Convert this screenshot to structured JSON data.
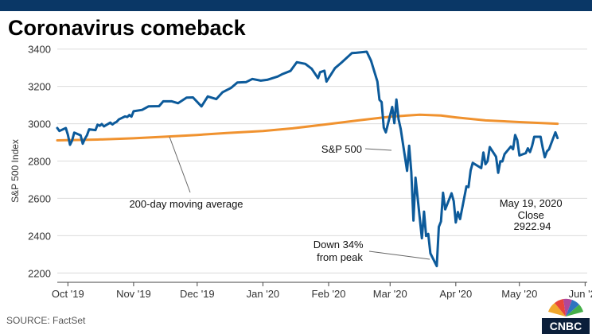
{
  "header": {
    "title": "Coronavirus comeback"
  },
  "footer": {
    "source": "SOURCE: FactSet",
    "brand": "CNBC"
  },
  "colors": {
    "topbar": "#0a3766",
    "sp500": "#0c5a9a",
    "ma200": "#f0922f",
    "grid": "#dcdcdc"
  },
  "chart_data": {
    "type": "line",
    "title": "Coronavirus comeback",
    "xlabel": "",
    "ylabel": "S&P 500 Index",
    "ylim": [
      2150,
      3450
    ],
    "yticks": [
      2200,
      2400,
      2600,
      2800,
      3000,
      3200,
      3400
    ],
    "x_ticks": [
      {
        "label": "Oct '19",
        "date": "2019-10-01"
      },
      {
        "label": "Nov '19",
        "date": "2019-11-01"
      },
      {
        "label": "Dec '19",
        "date": "2019-12-01"
      },
      {
        "label": "Jan '20",
        "date": "2020-01-01"
      },
      {
        "label": "Feb '20",
        "date": "2020-02-01"
      },
      {
        "label": "Mar '20",
        "date": "2020-03-01"
      },
      {
        "label": "Apr '20",
        "date": "2020-04-01"
      },
      {
        "label": "May '20",
        "date": "2020-05-01"
      },
      {
        "label": "Jun '20",
        "date": "2020-06-01"
      }
    ],
    "xlim": [
      "2019-09-26",
      "2020-06-02"
    ],
    "grid": "horizontal",
    "series": [
      {
        "name": "S&P 500",
        "color": "#0c5a9a",
        "points": [
          [
            "2019-09-26",
            2977
          ],
          [
            "2019-09-27",
            2961
          ],
          [
            "2019-09-30",
            2977
          ],
          [
            "2019-10-01",
            2941
          ],
          [
            "2019-10-02",
            2887
          ],
          [
            "2019-10-03",
            2910
          ],
          [
            "2019-10-04",
            2952
          ],
          [
            "2019-10-07",
            2938
          ],
          [
            "2019-10-08",
            2893
          ],
          [
            "2019-10-09",
            2919
          ],
          [
            "2019-10-10",
            2938
          ],
          [
            "2019-10-11",
            2970
          ],
          [
            "2019-10-14",
            2966
          ],
          [
            "2019-10-15",
            2995
          ],
          [
            "2019-10-16",
            2989
          ],
          [
            "2019-10-17",
            2998
          ],
          [
            "2019-10-18",
            2986
          ],
          [
            "2019-10-21",
            3006
          ],
          [
            "2019-10-22",
            2996
          ],
          [
            "2019-10-23",
            3004
          ],
          [
            "2019-10-24",
            3010
          ],
          [
            "2019-10-25",
            3023
          ],
          [
            "2019-10-28",
            3039
          ],
          [
            "2019-10-29",
            3036
          ],
          [
            "2019-10-30",
            3047
          ],
          [
            "2019-10-31",
            3038
          ],
          [
            "2019-11-01",
            3067
          ],
          [
            "2019-11-05",
            3074
          ],
          [
            "2019-11-08",
            3093
          ],
          [
            "2019-11-13",
            3094
          ],
          [
            "2019-11-15",
            3120
          ],
          [
            "2019-11-19",
            3120
          ],
          [
            "2019-11-22",
            3110
          ],
          [
            "2019-11-26",
            3140
          ],
          [
            "2019-11-29",
            3141
          ],
          [
            "2019-12-03",
            3093
          ],
          [
            "2019-12-06",
            3146
          ],
          [
            "2019-12-10",
            3132
          ],
          [
            "2019-12-13",
            3169
          ],
          [
            "2019-12-17",
            3192
          ],
          [
            "2019-12-20",
            3221
          ],
          [
            "2019-12-24",
            3223
          ],
          [
            "2019-12-27",
            3240
          ],
          [
            "2019-12-31",
            3231
          ],
          [
            "2020-01-03",
            3235
          ],
          [
            "2020-01-08",
            3253
          ],
          [
            "2020-01-10",
            3265
          ],
          [
            "2020-01-14",
            3283
          ],
          [
            "2020-01-17",
            3330
          ],
          [
            "2020-01-21",
            3321
          ],
          [
            "2020-01-24",
            3295
          ],
          [
            "2020-01-27",
            3244
          ],
          [
            "2020-01-28",
            3276
          ],
          [
            "2020-01-30",
            3284
          ],
          [
            "2020-01-31",
            3226
          ],
          [
            "2020-02-04",
            3298
          ],
          [
            "2020-02-07",
            3327
          ],
          [
            "2020-02-12",
            3379
          ],
          [
            "2020-02-14",
            3380
          ],
          [
            "2020-02-19",
            3386
          ],
          [
            "2020-02-21",
            3338
          ],
          [
            "2020-02-24",
            3226
          ],
          [
            "2020-02-25",
            3128
          ],
          [
            "2020-02-26",
            3116
          ],
          [
            "2020-02-27",
            2979
          ],
          [
            "2020-02-28",
            2954
          ],
          [
            "2020-03-02",
            3090
          ],
          [
            "2020-03-03",
            3003
          ],
          [
            "2020-03-04",
            3130
          ],
          [
            "2020-03-05",
            3024
          ],
          [
            "2020-03-06",
            2972
          ],
          [
            "2020-03-09",
            2747
          ],
          [
            "2020-03-10",
            2882
          ],
          [
            "2020-03-11",
            2741
          ],
          [
            "2020-03-12",
            2481
          ],
          [
            "2020-03-13",
            2711
          ],
          [
            "2020-03-16",
            2386
          ],
          [
            "2020-03-17",
            2529
          ],
          [
            "2020-03-18",
            2398
          ],
          [
            "2020-03-19",
            2409
          ],
          [
            "2020-03-20",
            2305
          ],
          [
            "2020-03-23",
            2237
          ],
          [
            "2020-03-24",
            2447
          ],
          [
            "2020-03-25",
            2476
          ],
          [
            "2020-03-26",
            2630
          ],
          [
            "2020-03-27",
            2541
          ],
          [
            "2020-03-30",
            2627
          ],
          [
            "2020-03-31",
            2585
          ],
          [
            "2020-04-01",
            2471
          ],
          [
            "2020-04-02",
            2527
          ],
          [
            "2020-04-03",
            2489
          ],
          [
            "2020-04-06",
            2664
          ],
          [
            "2020-04-07",
            2660
          ],
          [
            "2020-04-08",
            2750
          ],
          [
            "2020-04-09",
            2790
          ],
          [
            "2020-04-13",
            2762
          ],
          [
            "2020-04-14",
            2846
          ],
          [
            "2020-04-15",
            2783
          ],
          [
            "2020-04-16",
            2800
          ],
          [
            "2020-04-17",
            2875
          ],
          [
            "2020-04-20",
            2823
          ],
          [
            "2020-04-21",
            2737
          ],
          [
            "2020-04-22",
            2799
          ],
          [
            "2020-04-23",
            2798
          ],
          [
            "2020-04-24",
            2837
          ],
          [
            "2020-04-27",
            2878
          ],
          [
            "2020-04-28",
            2863
          ],
          [
            "2020-04-29",
            2940
          ],
          [
            "2020-04-30",
            2912
          ],
          [
            "2020-05-01",
            2830
          ],
          [
            "2020-05-04",
            2842
          ],
          [
            "2020-05-05",
            2868
          ],
          [
            "2020-05-06",
            2848
          ],
          [
            "2020-05-07",
            2881
          ],
          [
            "2020-05-08",
            2930
          ],
          [
            "2020-05-11",
            2930
          ],
          [
            "2020-05-12",
            2870
          ],
          [
            "2020-05-13",
            2820
          ],
          [
            "2020-05-14",
            2852
          ],
          [
            "2020-05-15",
            2863
          ],
          [
            "2020-05-18",
            2954
          ],
          [
            "2020-05-19",
            2923
          ]
        ]
      },
      {
        "name": "200-day moving average",
        "color": "#f0922f",
        "points": [
          [
            "2019-09-26",
            2911
          ],
          [
            "2019-10-15",
            2915
          ],
          [
            "2019-11-01",
            2922
          ],
          [
            "2019-11-15",
            2930
          ],
          [
            "2019-12-01",
            2940
          ],
          [
            "2019-12-15",
            2950
          ],
          [
            "2020-01-01",
            2961
          ],
          [
            "2020-01-15",
            2975
          ],
          [
            "2020-02-01",
            2998
          ],
          [
            "2020-02-15",
            3018
          ],
          [
            "2020-03-01",
            3038
          ],
          [
            "2020-03-15",
            3048
          ],
          [
            "2020-03-25",
            3044
          ],
          [
            "2020-04-01",
            3034
          ],
          [
            "2020-04-15",
            3018
          ],
          [
            "2020-05-01",
            3009
          ],
          [
            "2020-05-19",
            3000
          ]
        ]
      }
    ],
    "annotations": [
      {
        "text": "S&P 500"
      },
      {
        "text": "200-day moving average"
      },
      {
        "lines": [
          "Down 34%",
          "from peak"
        ]
      },
      {
        "lines": [
          "May 19, 2020",
          "Close",
          "2922.94"
        ]
      }
    ]
  }
}
